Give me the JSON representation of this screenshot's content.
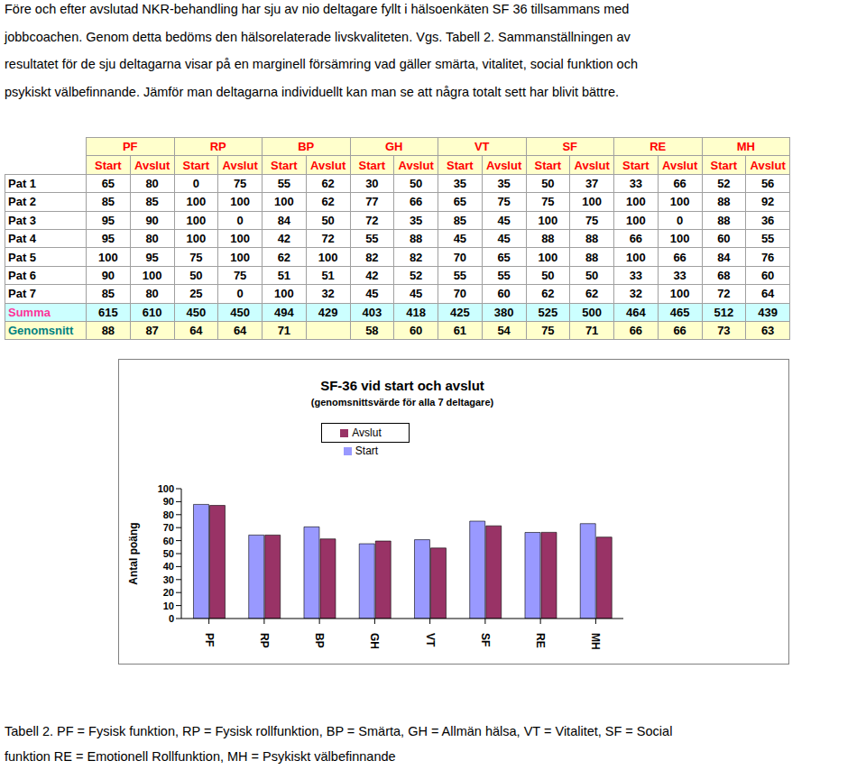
{
  "intro": [
    "Före och efter avslutad NKR-behandling har sju av nio deltagare fyllt i hälsoenkäten SF 36 tillsammans med",
    "jobbcoachen. Genom detta bedöms den hälsorelaterade livskvaliteten. Vgs. Tabell 2.  Sammanställningen av",
    "resultatet för de sju deltagarna visar på en marginell försämring vad gäller smärta, vitalitet, social funktion och",
    "psykiskt välbefinnande. Jämför man deltagarna individuellt kan man se att några totalt sett har blivit bättre."
  ],
  "table": {
    "groups": [
      "PF",
      "RP",
      "BP",
      "GH",
      "VT",
      "SF",
      "RE",
      "MH"
    ],
    "subheaders": [
      "Start",
      "Avslut"
    ],
    "rows": [
      {
        "label": "Pat 1",
        "values": [
          65,
          80,
          0,
          75,
          55,
          62,
          30,
          50,
          35,
          35,
          50,
          37,
          33,
          66,
          52,
          56
        ]
      },
      {
        "label": "Pat 2",
        "values": [
          85,
          85,
          100,
          100,
          100,
          62,
          77,
          66,
          65,
          75,
          75,
          100,
          100,
          100,
          88,
          92
        ]
      },
      {
        "label": "Pat 3",
        "values": [
          95,
          90,
          100,
          0,
          84,
          50,
          72,
          35,
          85,
          45,
          100,
          75,
          100,
          0,
          88,
          36
        ]
      },
      {
        "label": "Pat 4",
        "values": [
          95,
          80,
          100,
          100,
          42,
          72,
          55,
          88,
          45,
          45,
          88,
          88,
          66,
          100,
          60,
          55
        ]
      },
      {
        "label": "Pat 5",
        "values": [
          100,
          95,
          75,
          100,
          62,
          100,
          82,
          82,
          70,
          65,
          100,
          88,
          100,
          66,
          84,
          76
        ]
      },
      {
        "label": "Pat 6",
        "values": [
          90,
          100,
          50,
          75,
          51,
          51,
          42,
          52,
          55,
          55,
          50,
          50,
          33,
          33,
          68,
          60
        ]
      },
      {
        "label": "Pat 7",
        "values": [
          85,
          80,
          25,
          0,
          100,
          32,
          45,
          45,
          70,
          60,
          62,
          62,
          32,
          100,
          72,
          64
        ]
      }
    ],
    "summary": [
      {
        "label": "Summa",
        "values": [
          615,
          610,
          450,
          450,
          494,
          429,
          403,
          418,
          425,
          380,
          525,
          500,
          464,
          465,
          512,
          439
        ]
      },
      {
        "label": "Genomsnitt",
        "values": [
          88,
          87,
          64,
          64,
          71,
          null,
          58,
          60,
          61,
          54,
          75,
          71,
          66,
          66,
          73,
          63
        ]
      }
    ]
  },
  "chart_data": {
    "type": "bar",
    "title": "SF-36 vid start och avslut",
    "subtitle": "(genomsnittsvärde för alla 7 deltagare)",
    "y_label": "Antal poäng",
    "categories": [
      "PF",
      "RP",
      "BP",
      "GH",
      "VT",
      "SF",
      "RE",
      "MH"
    ],
    "series": [
      {
        "name": "Start",
        "color": "#9999ff",
        "values": [
          87.9,
          64.3,
          70.6,
          57.6,
          60.7,
          75,
          66.3,
          73.1
        ]
      },
      {
        "name": "Avslut",
        "color": "#993366",
        "values": [
          87.1,
          64.3,
          61.3,
          59.7,
          54.3,
          71.4,
          66.4,
          62.7
        ]
      }
    ],
    "ylim": [
      0,
      100
    ],
    "yticks": [
      0,
      10,
      20,
      30,
      40,
      50,
      60,
      70,
      80,
      90,
      100
    ],
    "grid": false,
    "legend": "top"
  },
  "caption": [
    "Tabell 2. PF = Fysisk funktion, RP = Fysisk rollfunktion, BP = Smärta, GH = Allmän hälsa, VT = Vitalitet, SF = Social",
    "funktion   RE = Emotionell Rollfunktion, MH = Psykiskt välbefinnande"
  ]
}
